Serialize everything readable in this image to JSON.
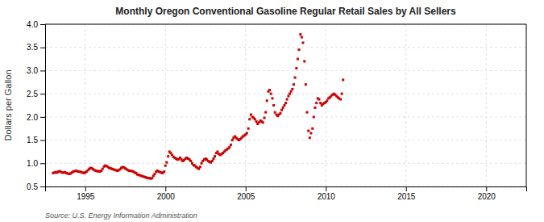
{
  "chart_data": {
    "type": "scatter",
    "title": "Monthly Oregon Conventional Gasoline Regular Retail Sales by All Sellers",
    "ylabel": "Dollars per Gallon",
    "annotations": [
      "Source: U.S. Energy Information Administration"
    ],
    "color": "#cc0000",
    "marker": "square",
    "grid": true,
    "xlim": [
      1992.5,
      2022.5
    ],
    "xticks": [
      1995,
      2000,
      2005,
      2010,
      2015,
      2020
    ],
    "ylim": [
      0.5,
      4.0
    ],
    "yticks": [
      0.5,
      {
        "value": 1.0,
        "label": "1.0"
      },
      1.5,
      {
        "value": 2.0,
        "label": "2.0"
      },
      2.5,
      {
        "value": 3.0,
        "label": "3.0"
      },
      3.5,
      {
        "value": 4.0,
        "label": "4.0"
      }
    ],
    "x": [
      1993.0,
      1993.08,
      1993.17,
      1993.25,
      1993.33,
      1993.42,
      1993.5,
      1993.58,
      1993.67,
      1993.75,
      1993.83,
      1993.92,
      1994.0,
      1994.08,
      1994.17,
      1994.25,
      1994.33,
      1994.42,
      1994.5,
      1994.58,
      1994.67,
      1994.75,
      1994.83,
      1994.92,
      1995.0,
      1995.08,
      1995.17,
      1995.25,
      1995.33,
      1995.42,
      1995.5,
      1995.58,
      1995.67,
      1995.75,
      1995.83,
      1995.92,
      1996.0,
      1996.08,
      1996.17,
      1996.25,
      1996.33,
      1996.42,
      1996.5,
      1996.58,
      1996.67,
      1996.75,
      1996.83,
      1996.92,
      1997.0,
      1997.08,
      1997.17,
      1997.25,
      1997.33,
      1997.42,
      1997.5,
      1997.58,
      1997.67,
      1997.75,
      1997.83,
      1997.92,
      1998.0,
      1998.08,
      1998.17,
      1998.25,
      1998.33,
      1998.42,
      1998.5,
      1998.58,
      1998.67,
      1998.75,
      1998.83,
      1998.92,
      1999.0,
      1999.08,
      1999.17,
      1999.25,
      1999.33,
      1999.42,
      1999.5,
      1999.58,
      1999.67,
      1999.75,
      1999.83,
      1999.92,
      2000.0,
      2000.08,
      2000.17,
      2000.25,
      2000.33,
      2000.42,
      2000.5,
      2000.58,
      2000.67,
      2000.75,
      2000.83,
      2000.92,
      2001.0,
      2001.08,
      2001.17,
      2001.25,
      2001.33,
      2001.42,
      2001.5,
      2001.58,
      2001.67,
      2001.75,
      2001.83,
      2001.92,
      2002.0,
      2002.08,
      2002.17,
      2002.25,
      2002.33,
      2002.42,
      2002.5,
      2002.58,
      2002.67,
      2002.75,
      2002.83,
      2002.92,
      2003.0,
      2003.08,
      2003.17,
      2003.25,
      2003.33,
      2003.42,
      2003.5,
      2003.58,
      2003.67,
      2003.75,
      2003.83,
      2003.92,
      2004.0,
      2004.08,
      2004.17,
      2004.25,
      2004.33,
      2004.42,
      2004.5,
      2004.58,
      2004.67,
      2004.75,
      2004.83,
      2004.92,
      2005.0,
      2005.08,
      2005.17,
      2005.25,
      2005.33,
      2005.42,
      2005.5,
      2005.58,
      2005.67,
      2005.75,
      2005.83,
      2005.92,
      2006.0,
      2006.08,
      2006.17,
      2006.25,
      2006.33,
      2006.42,
      2006.5,
      2006.58,
      2006.67,
      2006.75,
      2006.83,
      2006.92,
      2007.0,
      2007.08,
      2007.17,
      2007.25,
      2007.33,
      2007.42,
      2007.5,
      2007.58,
      2007.67,
      2007.75,
      2007.83,
      2007.92,
      2008.0,
      2008.08,
      2008.17,
      2008.25,
      2008.33,
      2008.42,
      2008.5,
      2008.58,
      2008.67,
      2008.75,
      2008.83,
      2008.92,
      2009.0,
      2009.08,
      2009.17,
      2009.25,
      2009.33,
      2009.42,
      2009.5,
      2009.58,
      2009.67,
      2009.75,
      2009.83,
      2009.92,
      2010.0,
      2010.08,
      2010.17,
      2010.25,
      2010.33,
      2010.42,
      2010.5,
      2010.58,
      2010.67,
      2010.75,
      2010.83,
      2010.92,
      2011.0,
      2011.08
    ],
    "values": [
      0.79,
      0.8,
      0.81,
      0.8,
      0.82,
      0.83,
      0.81,
      0.8,
      0.8,
      0.81,
      0.79,
      0.78,
      0.77,
      0.78,
      0.8,
      0.82,
      0.83,
      0.84,
      0.83,
      0.82,
      0.82,
      0.81,
      0.8,
      0.79,
      0.8,
      0.82,
      0.85,
      0.88,
      0.9,
      0.89,
      0.87,
      0.85,
      0.84,
      0.83,
      0.83,
      0.82,
      0.84,
      0.88,
      0.93,
      0.95,
      0.94,
      0.92,
      0.9,
      0.89,
      0.88,
      0.87,
      0.86,
      0.85,
      0.84,
      0.85,
      0.87,
      0.9,
      0.92,
      0.91,
      0.89,
      0.87,
      0.85,
      0.84,
      0.84,
      0.83,
      0.82,
      0.8,
      0.79,
      0.76,
      0.75,
      0.74,
      0.73,
      0.72,
      0.71,
      0.7,
      0.69,
      0.68,
      0.68,
      0.67,
      0.68,
      0.73,
      0.77,
      0.82,
      0.84,
      0.82,
      0.81,
      0.8,
      0.79,
      0.82,
      0.95,
      1.02,
      1.15,
      1.25,
      1.22,
      1.18,
      1.14,
      1.12,
      1.1,
      1.08,
      1.09,
      1.12,
      1.08,
      1.05,
      1.07,
      1.1,
      1.12,
      1.1,
      1.08,
      1.05,
      1.0,
      0.96,
      0.95,
      0.92,
      0.9,
      0.88,
      0.92,
      1.0,
      1.05,
      1.08,
      1.1,
      1.08,
      1.05,
      1.03,
      1.02,
      1.05,
      1.1,
      1.15,
      1.22,
      1.25,
      1.2,
      1.18,
      1.2,
      1.22,
      1.25,
      1.28,
      1.3,
      1.32,
      1.35,
      1.4,
      1.5,
      1.55,
      1.58,
      1.55,
      1.52,
      1.5,
      1.52,
      1.55,
      1.58,
      1.6,
      1.62,
      1.65,
      1.75,
      1.95,
      2.05,
      2.0,
      1.98,
      1.95,
      1.9,
      1.85,
      1.88,
      1.92,
      1.9,
      1.88,
      1.98,
      2.1,
      2.35,
      2.55,
      2.58,
      2.5,
      2.4,
      2.25,
      2.1,
      2.05,
      2.02,
      2.05,
      2.08,
      2.15,
      2.2,
      2.25,
      2.3,
      2.38,
      2.45,
      2.5,
      2.55,
      2.6,
      2.7,
      2.85,
      3.05,
      3.25,
      3.45,
      3.78,
      3.72,
      3.6,
      3.2,
      2.7,
      2.1,
      1.7,
      1.55,
      1.65,
      1.75,
      2.0,
      2.2,
      2.3,
      2.4,
      2.38,
      2.3,
      2.25,
      2.28,
      2.3,
      2.32,
      2.35,
      2.4,
      2.42,
      2.45,
      2.48,
      2.5,
      2.48,
      2.45,
      2.42,
      2.4,
      2.38,
      2.5,
      2.8
    ]
  }
}
